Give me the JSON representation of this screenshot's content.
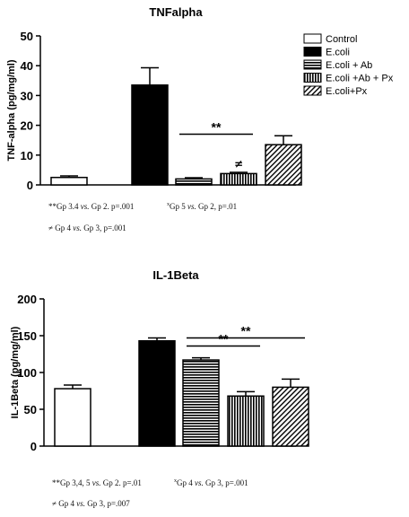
{
  "chart_data": [
    {
      "type": "bar",
      "title": "TNFalpha",
      "ylabel": "TNF-alpha (pg/mg/ml)",
      "xlabel": "",
      "ylim": [
        0,
        50
      ],
      "yticks": [
        0,
        10,
        20,
        30,
        40,
        50
      ],
      "grid": false,
      "legend_position": "top-right",
      "categories": [
        "Control",
        "E.coli",
        "E.coli + Ab",
        "E.coli +Ab + Px",
        "E.coli+Px"
      ],
      "values": [
        2.5,
        33.5,
        2.0,
        3.8,
        13.5
      ],
      "errors": [
        0.5,
        5.8,
        0.4,
        0.4,
        3.0
      ],
      "fills": [
        "white",
        "black",
        "hlines",
        "vlines",
        "diag"
      ],
      "annotations": [
        {
          "text": "**",
          "from": 2,
          "to": 3,
          "level": 17
        },
        {
          "text": "≠",
          "bar": 3,
          "level": 5.8
        }
      ]
    },
    {
      "type": "bar",
      "title": "IL-1Beta",
      "ylabel": "IL-1Beta (pg/mg/ml)",
      "xlabel": "",
      "ylim": [
        0,
        200
      ],
      "yticks": [
        0,
        50,
        100,
        150,
        200
      ],
      "grid": false,
      "legend_position": "",
      "categories": [
        "Control",
        "E.coli",
        "E.coli + Ab",
        "E.coli +Ab + Px",
        "E.coli+Px"
      ],
      "values": [
        78,
        143,
        117,
        68,
        80
      ],
      "errors": [
        5,
        4,
        3,
        6,
        11
      ],
      "fills": [
        "white",
        "black",
        "hlines",
        "vlines",
        "diag"
      ],
      "annotations": [
        {
          "text": "**",
          "from": 2,
          "to": 3,
          "level": 136
        },
        {
          "text": "**",
          "from": 2,
          "to": 4,
          "level": 147
        }
      ]
    }
  ],
  "notes": {
    "tnf": {
      "line1a_mark": "**",
      "line1a_gp": "Gp 3.4",
      "line1a_vs": "vs.",
      "line1a_rest": "Gp 2. p=.001",
      "line1b_mark": "x",
      "line1b_gp": "Gp 5",
      "line1b_vs": "vs.",
      "line1b_rest": "Gp 2, p=.01",
      "line2_gp": "≠ Gp 4",
      "line2_vs": "vs.",
      "line2_rest": "Gp 3, p=.001"
    },
    "il": {
      "line1a_mark": "**",
      "line1a_gp": "Gp 3,4, 5",
      "line1a_vs": "vs.",
      "line1a_rest": "Gp 2. p=.01",
      "line1b_mark": "x",
      "line1b_gp": "Gp 4",
      "line1b_vs": "vs.",
      "line1b_rest": "Gp 3, p=.001",
      "line2_gp": "≠ Gp 4",
      "line2_vs": "vs.",
      "line2_rest": "Gp 3, p=.007"
    }
  }
}
